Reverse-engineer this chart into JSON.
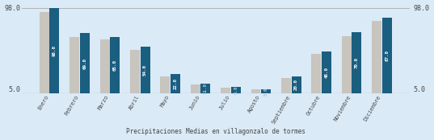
{
  "months": [
    "Enero",
    "Febrero",
    "Marzo",
    "Abril",
    "Mayo",
    "Junio",
    "Julio",
    "Agosto",
    "Septiembre",
    "Octubre",
    "Noviembre",
    "Diciembre"
  ],
  "blue_values": [
    98.0,
    69.0,
    65.0,
    54.0,
    22.0,
    11.0,
    8.0,
    5.0,
    20.0,
    48.0,
    70.0,
    87.0
  ],
  "gray_values": [
    93.0,
    65.0,
    62.0,
    50.0,
    20.0,
    10.0,
    7.0,
    4.5,
    18.0,
    45.0,
    66.0,
    83.0
  ],
  "blue_color": "#1a5e80",
  "gray_color": "#c8c4be",
  "bg_color": "#daeaf6",
  "text_color": "#444444",
  "title": "Precipitaciones Medias en villagonzalo de tormes",
  "ymin": 0.0,
  "ymax": 98.0,
  "ytick_min": 5.0,
  "ytick_max": 98.0,
  "bar_label_color_white": "#ffffff",
  "bar_label_color_light": "#aac8e0"
}
